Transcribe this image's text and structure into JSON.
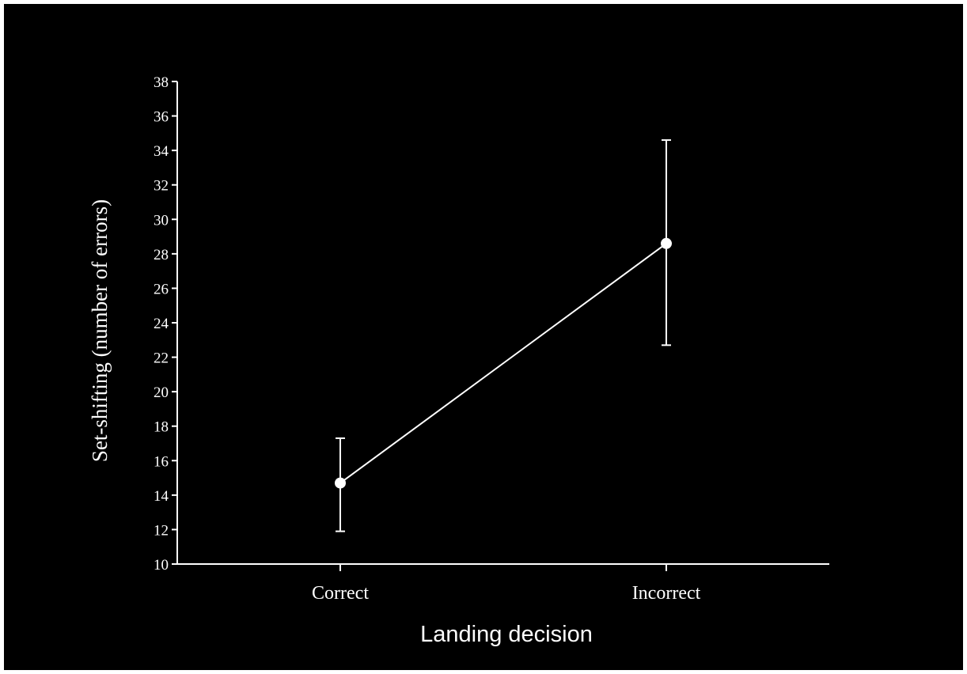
{
  "chart_data": {
    "type": "line",
    "title": "",
    "xlabel": "Landing decision",
    "ylabel": "Set-shifting (number of errors)",
    "categories": [
      "Correct",
      "Incorrect"
    ],
    "series": [
      {
        "values": [
          14.7,
          28.6
        ],
        "error_low": [
          11.9,
          22.7
        ],
        "error_high": [
          17.3,
          34.6
        ]
      }
    ],
    "ylim": [
      10,
      38
    ],
    "yticks": [
      10,
      12,
      14,
      16,
      18,
      20,
      22,
      24,
      26,
      28,
      30,
      32,
      34,
      36,
      38
    ],
    "grid": false,
    "legend": "none",
    "colors": {
      "background": "#000000",
      "foreground": "#ffffff"
    }
  }
}
